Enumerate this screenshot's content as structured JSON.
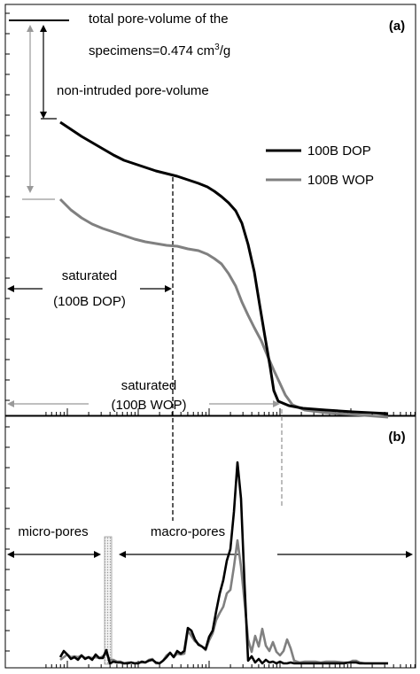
{
  "chart_data": [
    {
      "panel_label": "(a)",
      "type": "line",
      "x_scale": "log",
      "series": [
        {
          "name": "100B DOP",
          "color": "#000000",
          "points": [
            [
              0,
              138
            ],
            [
              12,
              146
            ],
            [
              24,
              154
            ],
            [
              36,
              161
            ],
            [
              48,
              168
            ],
            [
              60,
              175
            ],
            [
              72,
              181
            ],
            [
              84,
              185
            ],
            [
              96,
              189
            ],
            [
              108,
              193
            ],
            [
              120,
              196
            ],
            [
              132,
              199
            ],
            [
              144,
              203
            ],
            [
              156,
              207
            ],
            [
              166,
              211
            ],
            [
              174,
              216
            ],
            [
              182,
              222
            ],
            [
              190,
              229
            ],
            [
              198,
              238
            ],
            [
              205,
              252
            ],
            [
              212,
              276
            ],
            [
              219,
              307
            ],
            [
              225,
              344
            ],
            [
              231,
              380
            ],
            [
              237,
              415
            ],
            [
              241,
              441
            ],
            [
              246,
              453
            ],
            [
              258,
              458
            ],
            [
              274,
              461
            ],
            [
              300,
              463
            ],
            [
              330,
              465
            ],
            [
              370,
              467
            ]
          ]
        },
        {
          "name": "100B WOP",
          "color": "#808080",
          "points": [
            [
              0,
              225
            ],
            [
              12,
              237
            ],
            [
              24,
              246
            ],
            [
              36,
              253
            ],
            [
              48,
              258
            ],
            [
              60,
              262
            ],
            [
              72,
              266
            ],
            [
              84,
              270
            ],
            [
              96,
              273
            ],
            [
              108,
              275
            ],
            [
              120,
              277
            ],
            [
              132,
              278
            ],
            [
              144,
              281
            ],
            [
              156,
              283
            ],
            [
              166,
              287
            ],
            [
              174,
              292
            ],
            [
              182,
              298
            ],
            [
              190,
              309
            ],
            [
              198,
              323
            ],
            [
              205,
              341
            ],
            [
              212,
              356
            ],
            [
              219,
              370
            ],
            [
              227,
              385
            ],
            [
              234,
              402
            ],
            [
              241,
              418
            ],
            [
              248,
              433
            ],
            [
              254,
              446
            ],
            [
              262,
              457
            ],
            [
              276,
              463
            ],
            [
              300,
              466
            ],
            [
              330,
              468
            ],
            [
              370,
              471
            ]
          ]
        }
      ],
      "annotations": {
        "total_line1": "total pore-volume of the",
        "total_line2_prefix": "specimens=0.474 cm",
        "total_sup": "3",
        "total_suffix": "/g",
        "non_intruded": "non-intruded pore-volume",
        "sat_dop_line1": "saturated",
        "sat_dop_line2": "(100B DOP)",
        "sat_wop_line1": "saturated",
        "sat_wop_line2": "(100B WOP)"
      },
      "legend_position": "right"
    },
    {
      "panel_label": "(b)",
      "type": "line",
      "x_scale": "log",
      "series": [
        {
          "name": "100B DOP",
          "color": "#000000",
          "points": [
            [
              0,
              742
            ],
            [
              4,
              735
            ],
            [
              8,
              739
            ],
            [
              12,
              744
            ],
            [
              16,
              742
            ],
            [
              20,
              745
            ],
            [
              24,
              740
            ],
            [
              28,
              744
            ],
            [
              32,
              742
            ],
            [
              36,
              745
            ],
            [
              40,
              739
            ],
            [
              44,
              743
            ],
            [
              48,
              743
            ],
            [
              52,
              734
            ],
            [
              56,
              749
            ],
            [
              60,
              747
            ],
            [
              64,
              748
            ],
            [
              68,
              748
            ],
            [
              72,
              749
            ],
            [
              76,
              749
            ],
            [
              80,
              748
            ],
            [
              84,
              749
            ],
            [
              88,
              749
            ],
            [
              92,
              747
            ],
            [
              96,
              748
            ],
            [
              100,
              746
            ],
            [
              104,
              745
            ],
            [
              108,
              748
            ],
            [
              112,
              749
            ],
            [
              116,
              746
            ],
            [
              120,
              742
            ],
            [
              124,
              737
            ],
            [
              128,
              742
            ],
            [
              132,
              735
            ],
            [
              136,
              738
            ],
            [
              140,
              735
            ],
            [
              144,
              709
            ],
            [
              148,
              712
            ],
            [
              152,
              722
            ],
            [
              156,
              728
            ],
            [
              160,
              730
            ],
            [
              164,
              733
            ],
            [
              168,
              719
            ],
            [
              172,
              712
            ],
            [
              176,
              690
            ],
            [
              180,
              670
            ],
            [
              184,
              655
            ],
            [
              188,
              633
            ],
            [
              192,
              620
            ],
            [
              196,
              578
            ],
            [
              200,
              522
            ],
            [
              204,
              563
            ],
            [
              208,
              660
            ],
            [
              212,
              746
            ],
            [
              216,
              741
            ],
            [
              220,
              748
            ],
            [
              224,
              744
            ],
            [
              228,
              749
            ],
            [
              232,
              745
            ],
            [
              236,
              748
            ],
            [
              240,
              747
            ],
            [
              244,
              749
            ],
            [
              248,
              747
            ],
            [
              252,
              749
            ],
            [
              256,
              749
            ],
            [
              260,
              748
            ],
            [
              264,
              749
            ],
            [
              270,
              749
            ],
            [
              274,
              749
            ],
            [
              280,
              749
            ],
            [
              288,
              749
            ],
            [
              296,
              749
            ],
            [
              304,
              749
            ],
            [
              312,
              749
            ],
            [
              320,
              749
            ],
            [
              326,
              748
            ],
            [
              330,
              748
            ],
            [
              334,
              748
            ],
            [
              338,
              749
            ],
            [
              344,
              749
            ],
            [
              352,
              749
            ],
            [
              360,
              749
            ],
            [
              370,
              749
            ]
          ]
        },
        {
          "name": "100B WOP",
          "color": "#808080",
          "points": [
            [
              0,
              745
            ],
            [
              4,
              742
            ],
            [
              8,
              739
            ],
            [
              12,
              742
            ],
            [
              16,
              741
            ],
            [
              20,
              742
            ],
            [
              24,
              740
            ],
            [
              28,
              743
            ],
            [
              32,
              742
            ],
            [
              36,
              743
            ],
            [
              40,
              742
            ],
            [
              44,
              743
            ],
            [
              48,
              741
            ],
            [
              52,
              738
            ],
            [
              56,
              745
            ],
            [
              60,
              745
            ],
            [
              64,
              747
            ],
            [
              68,
              747
            ],
            [
              72,
              749
            ],
            [
              76,
              748
            ],
            [
              80,
              748
            ],
            [
              84,
              749
            ],
            [
              88,
              748
            ],
            [
              92,
              748
            ],
            [
              96,
              748
            ],
            [
              100,
              745
            ],
            [
              104,
              744
            ],
            [
              108,
              749
            ],
            [
              112,
              749
            ],
            [
              116,
              746
            ],
            [
              120,
              740
            ],
            [
              124,
              737
            ],
            [
              128,
              742
            ],
            [
              132,
              738
            ],
            [
              136,
              739
            ],
            [
              140,
              738
            ],
            [
              144,
              712
            ],
            [
              148,
              718
            ],
            [
              152,
              724
            ],
            [
              156,
              727
            ],
            [
              160,
              730
            ],
            [
              164,
              734
            ],
            [
              168,
              723
            ],
            [
              172,
              715
            ],
            [
              176,
              700
            ],
            [
              180,
              692
            ],
            [
              184,
              685
            ],
            [
              188,
              670
            ],
            [
              192,
              666
            ],
            [
              196,
              640
            ],
            [
              200,
              610
            ],
            [
              204,
              640
            ],
            [
              208,
              680
            ],
            [
              212,
              722
            ],
            [
              216,
              736
            ],
            [
              220,
              718
            ],
            [
              224,
              730
            ],
            [
              228,
              710
            ],
            [
              232,
              729
            ],
            [
              236,
              735
            ],
            [
              240,
              725
            ],
            [
              244,
              736
            ],
            [
              248,
              740
            ],
            [
              252,
              735
            ],
            [
              256,
              722
            ],
            [
              260,
              732
            ],
            [
              264,
              746
            ],
            [
              270,
              748
            ],
            [
              276,
              747
            ],
            [
              282,
              747
            ],
            [
              288,
              747
            ],
            [
              294,
              748
            ],
            [
              300,
              747
            ],
            [
              310,
              747
            ],
            [
              320,
              748
            ],
            [
              326,
              748
            ],
            [
              330,
              746
            ],
            [
              334,
              746
            ],
            [
              338,
              748
            ],
            [
              344,
              749
            ],
            [
              352,
              749
            ],
            [
              360,
              749
            ],
            [
              370,
              749
            ]
          ]
        }
      ],
      "annotations": {
        "micro": "micro-pores",
        "macro": "macro-pores"
      }
    }
  ]
}
